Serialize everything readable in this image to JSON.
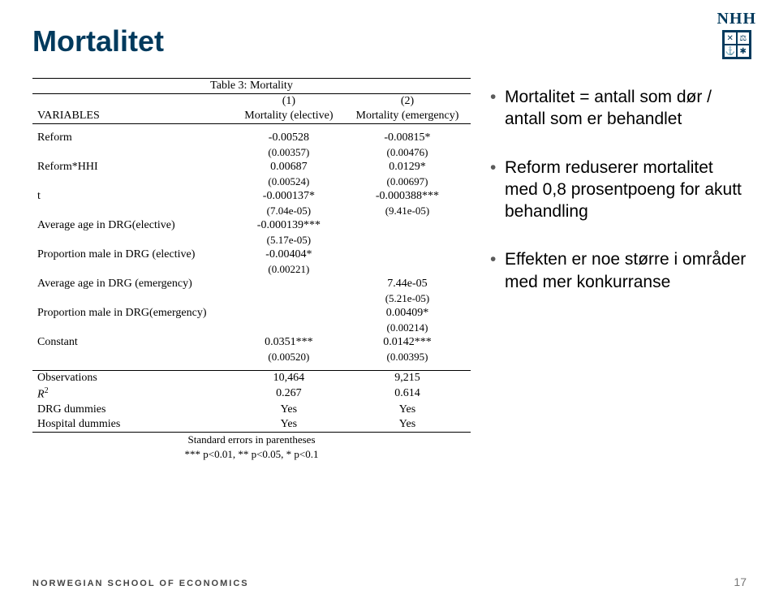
{
  "brand": {
    "short": "NHH",
    "short_color": "#003a5d",
    "full": "NORWEGIAN SCHOOL OF ECONOMICS"
  },
  "title": {
    "text": "Mortalitet",
    "color": "#003a5d"
  },
  "bullets": [
    "Mortalitet = antall som dør / antall som er behandlet",
    "Reform reduserer mortalitet med 0,8 prosentpoeng for akutt behandling",
    "Effekten er noe større i områder med mer konkurranse"
  ],
  "table": {
    "caption": "Table 3: Mortality",
    "col_headers": {
      "n1": "(1)",
      "n2": "(2)",
      "label": "VARIABLES",
      "c1": "Mortality (elective)",
      "c2": "Mortality (emergency)"
    },
    "rows": [
      {
        "label": "Reform",
        "c1": "-0.00528",
        "c2": "-0.00815*",
        "se1": "(0.00357)",
        "se2": "(0.00476)"
      },
      {
        "label": "Reform*HHI",
        "c1": "0.00687",
        "c2": "0.0129*",
        "se1": "(0.00524)",
        "se2": "(0.00697)"
      },
      {
        "label": "t",
        "c1": "-0.000137*",
        "c2": "-0.000388***",
        "se1": "(7.04e-05)",
        "se2": "(9.41e-05)"
      },
      {
        "label": "Average age in DRG(elective)",
        "c1": "-0.000139***",
        "c2": "",
        "se1": "(5.17e-05)",
        "se2": ""
      },
      {
        "label": "Proportion male in DRG (elective)",
        "c1": "-0.00404*",
        "c2": "",
        "se1": "(0.00221)",
        "se2": ""
      },
      {
        "label": "Average age in DRG (emergency)",
        "c1": "",
        "c2": "7.44e-05",
        "se1": "",
        "se2": "(5.21e-05)"
      },
      {
        "label": "Proportion male in DRG(emergency)",
        "c1": "",
        "c2": "0.00409*",
        "se1": "",
        "se2": "(0.00214)"
      },
      {
        "label": "Constant",
        "c1": "0.0351***",
        "c2": "0.0142***",
        "se1": "(0.00520)",
        "se2": "(0.00395)"
      }
    ],
    "stats": [
      {
        "label": "Observations",
        "c1": "10,464",
        "c2": "9,215"
      },
      {
        "label": "R²",
        "c1": "0.267",
        "c2": "0.614"
      },
      {
        "label": "DRG dummies",
        "c1": "Yes",
        "c2": "Yes"
      },
      {
        "label": "Hospital dummies",
        "c1": "Yes",
        "c2": "Yes"
      }
    ],
    "footnotes": [
      "Standard errors in parentheses",
      "*** p<0.01, ** p<0.05, * p<0.1"
    ]
  },
  "page_number": "17"
}
